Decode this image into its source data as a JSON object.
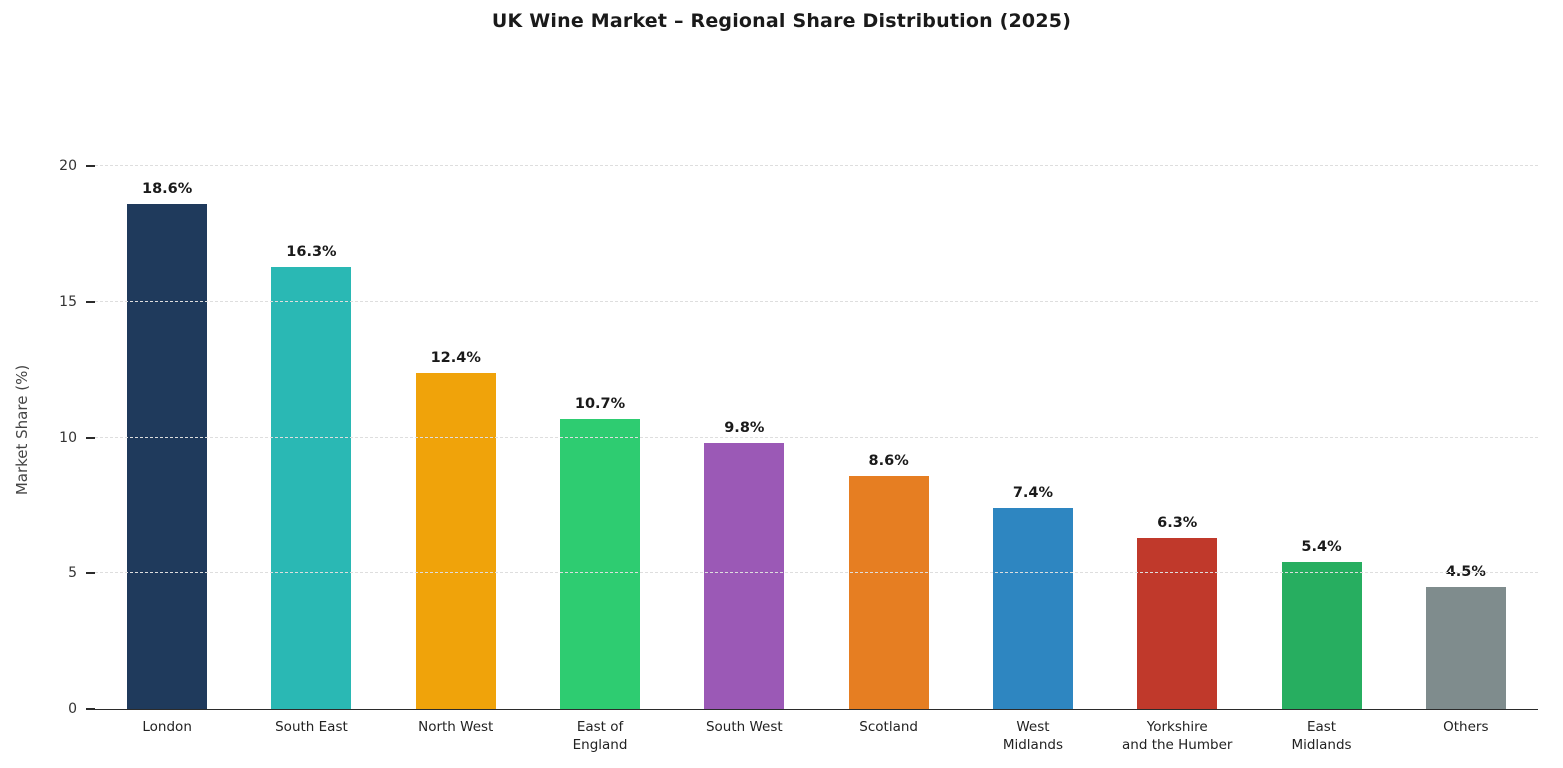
{
  "chart_data": {
    "type": "bar",
    "title": "UK Wine Market – Regional Share Distribution (2025)",
    "xlabel": "",
    "ylabel": "Market Share (%)",
    "ylim": [
      0,
      20.6
    ],
    "yticks": [
      0,
      5,
      10,
      15,
      20
    ],
    "grid": "horizontal-dashed",
    "legend": "none",
    "categories": [
      "London",
      "South East",
      "North West",
      "East of\nEngland",
      "South West",
      "Scotland",
      "West\nMidlands",
      "Yorkshire\nand the Humber",
      "East\nMidlands",
      "Others"
    ],
    "values": [
      18.6,
      16.3,
      12.4,
      10.7,
      9.8,
      8.6,
      7.4,
      6.3,
      5.4,
      4.5
    ],
    "value_labels": [
      "18.6%",
      "16.3%",
      "12.4%",
      "10.7%",
      "9.8%",
      "8.6%",
      "7.4%",
      "6.3%",
      "5.4%",
      "4.5%"
    ],
    "colors": [
      "#1f3a5c",
      "#2ab8b4",
      "#f0a30a",
      "#2ecc71",
      "#9b59b6",
      "#e67e22",
      "#2e86c1",
      "#c0392b",
      "#27ae60",
      "#7f8c8d"
    ]
  }
}
